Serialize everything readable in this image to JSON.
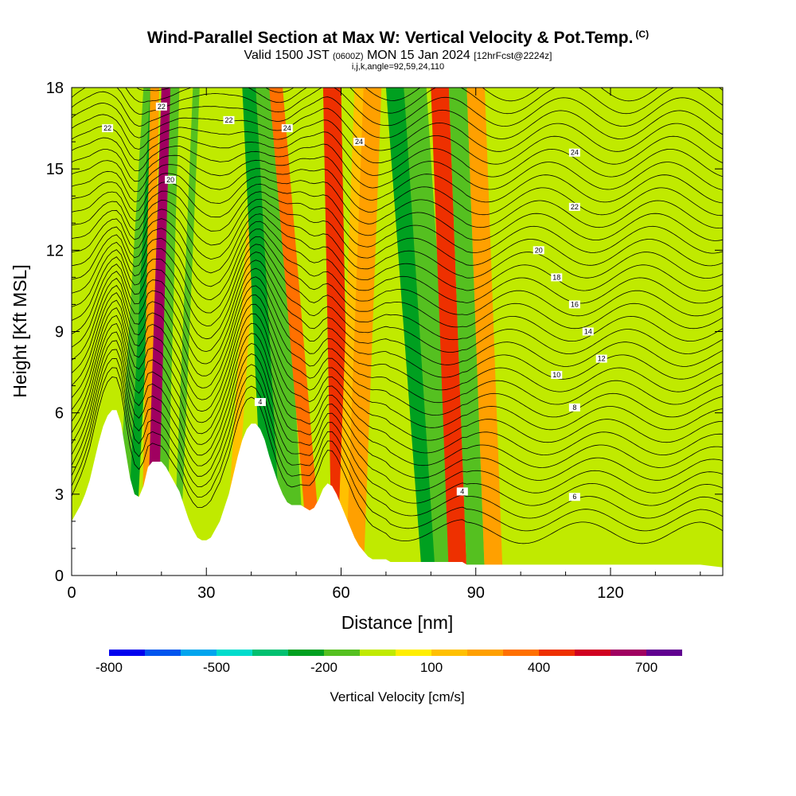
{
  "header": {
    "title": "Wind-Parallel Section at Max W: Vertical Velocity & Pot.Temp.",
    "copyright": "(C)",
    "valid_prefix": "Valid 1500 JST",
    "valid_utc": "(0600Z)",
    "valid_date": "MON 15 Jan 2024",
    "forecast": "[12hrFcst@2224z]",
    "indices": "i,j,k,angle=92,59,24,110"
  },
  "colors": {
    "velocity_scale": [
      "#0000ee",
      "#0055ee",
      "#00a5ee",
      "#00dccc",
      "#00c070",
      "#00a020",
      "#55c020",
      "#c0ea00",
      "#ffee00",
      "#ffc000",
      "#ffa000",
      "#ff7000",
      "#ee3000",
      "#d00020",
      "#a00060",
      "#600090"
    ],
    "terrain": "#ffffff",
    "contour_line": "#000000"
  },
  "chart_data": {
    "type": "heatmap",
    "title": "Wind-Parallel Section at Max W: Vertical Velocity & Pot.Temp.",
    "xlabel": "Distance [nm]",
    "ylabel": "Height [Kft MSL]",
    "xlim": [
      0,
      145
    ],
    "ylim": [
      0,
      18
    ],
    "x_ticks": [
      0,
      30,
      60,
      90,
      120
    ],
    "y_ticks": [
      0,
      3,
      6,
      9,
      12,
      15,
      18
    ],
    "colorbar": {
      "title": "Vertical Velocity [cm/s]",
      "labels": [
        "-800",
        "-500",
        "-200",
        "100",
        "400",
        "700"
      ],
      "label_positions": [
        0,
        3,
        6,
        9,
        12,
        15
      ],
      "n_bins": 16
    },
    "terrain_profile": {
      "x": [
        0,
        1,
        2,
        3,
        4,
        5,
        6,
        7,
        8,
        9,
        10,
        11,
        12,
        13,
        14,
        15,
        16,
        17,
        18,
        19,
        20,
        21,
        22,
        23,
        24,
        25,
        26,
        27,
        28,
        29,
        30,
        31,
        32,
        33,
        34,
        35,
        36,
        37,
        38,
        39,
        40,
        41,
        42,
        43,
        44,
        45,
        46,
        47,
        48,
        49,
        50,
        51,
        52,
        53,
        54,
        55,
        56,
        57,
        58,
        59,
        60,
        61,
        62,
        63,
        64,
        65,
        66,
        67,
        68,
        69,
        70,
        71,
        72,
        73,
        74,
        75,
        76,
        77,
        78,
        79,
        80,
        81,
        82,
        83,
        84,
        85,
        86,
        87,
        88,
        89,
        90,
        91,
        92,
        93,
        94,
        95,
        96,
        97,
        98,
        99,
        100,
        105,
        110,
        115,
        120,
        125,
        130,
        135,
        140,
        145
      ],
      "height": [
        2.0,
        2.3,
        2.6,
        3.0,
        3.5,
        4.2,
        4.9,
        5.5,
        5.9,
        6.1,
        6.1,
        5.6,
        4.6,
        3.6,
        3.0,
        2.9,
        3.3,
        4.0,
        4.2,
        4.2,
        4.2,
        4.0,
        3.7,
        3.4,
        3.1,
        2.6,
        2.1,
        1.7,
        1.4,
        1.3,
        1.3,
        1.4,
        1.7,
        2.0,
        2.5,
        3.0,
        3.7,
        4.4,
        5.0,
        5.4,
        5.6,
        5.6,
        5.4,
        5.0,
        4.4,
        3.9,
        3.4,
        3.0,
        2.7,
        2.6,
        2.6,
        2.6,
        2.5,
        2.4,
        2.5,
        2.8,
        3.2,
        3.4,
        3.3,
        3.0,
        2.6,
        2.2,
        1.8,
        1.4,
        1.1,
        0.9,
        0.7,
        0.6,
        0.6,
        0.6,
        0.6,
        0.5,
        0.5,
        0.5,
        0.5,
        0.5,
        0.5,
        0.5,
        0.5,
        0.5,
        0.5,
        0.5,
        0.5,
        0.5,
        0.5,
        0.5,
        0.5,
        0.5,
        0.4,
        0.4,
        0.4,
        0.4,
        0.4,
        0.4,
        0.4,
        0.4,
        0.4,
        0.4,
        0.4,
        0.4,
        0.4,
        0.4,
        0.4,
        0.4,
        0.4,
        0.4,
        0.4,
        0.4,
        0.4,
        0.3
      ]
    },
    "velocity_bands": [
      {
        "x0": 9.5,
        "x1": 12,
        "x_top": 16,
        "value": -200
      },
      {
        "x0": 12,
        "x1": 14,
        "x_top": 17.5,
        "value": -300
      },
      {
        "x0": 15.5,
        "x1": 17.5,
        "x_top": 17.5,
        "value": 200
      },
      {
        "x0": 16.5,
        "x1": 19,
        "x_top": 20,
        "value": 600
      },
      {
        "x0": 19,
        "x1": 21,
        "x_top": 22,
        "value": -200
      },
      {
        "x0": 22.5,
        "x1": 24,
        "x_top": 27,
        "value": -200
      },
      {
        "x0": 34,
        "x1": 36,
        "x_top": 41,
        "value": 150
      },
      {
        "x0": 43,
        "x1": 49,
        "x_top": 38,
        "value": -300
      },
      {
        "x0": 47,
        "x1": 52,
        "x_top": 41,
        "value": -200
      },
      {
        "x0": 53,
        "x1": 56,
        "x_top": 44,
        "value": 300
      },
      {
        "x0": 58,
        "x1": 62,
        "x_top": 56,
        "value": 400
      },
      {
        "x0": 59,
        "x1": 62,
        "x_top": 63,
        "value": 150
      },
      {
        "x0": 61,
        "x1": 65,
        "x_top": 65,
        "value": 250
      },
      {
        "x0": 78,
        "x1": 82,
        "x_top": 70,
        "value": -300
      },
      {
        "x0": 81,
        "x1": 86,
        "x_top": 74,
        "value": -200
      },
      {
        "x0": 84,
        "x1": 88,
        "x_top": 80,
        "value": 400
      },
      {
        "x0": 88,
        "x1": 92,
        "x_top": 84,
        "value": -200
      },
      {
        "x0": 92,
        "x1": 96,
        "x_top": 88,
        "value": 200
      }
    ],
    "isentropes": {
      "labels": [
        "4",
        "6",
        "8",
        "10",
        "12",
        "14",
        "16",
        "18",
        "20",
        "22",
        "24"
      ]
    }
  },
  "axes": {
    "xlabel": "Distance [nm]",
    "ylabel": "Height [Kft MSL]"
  },
  "colorbar_title": "Vertical Velocity [cm/s]"
}
